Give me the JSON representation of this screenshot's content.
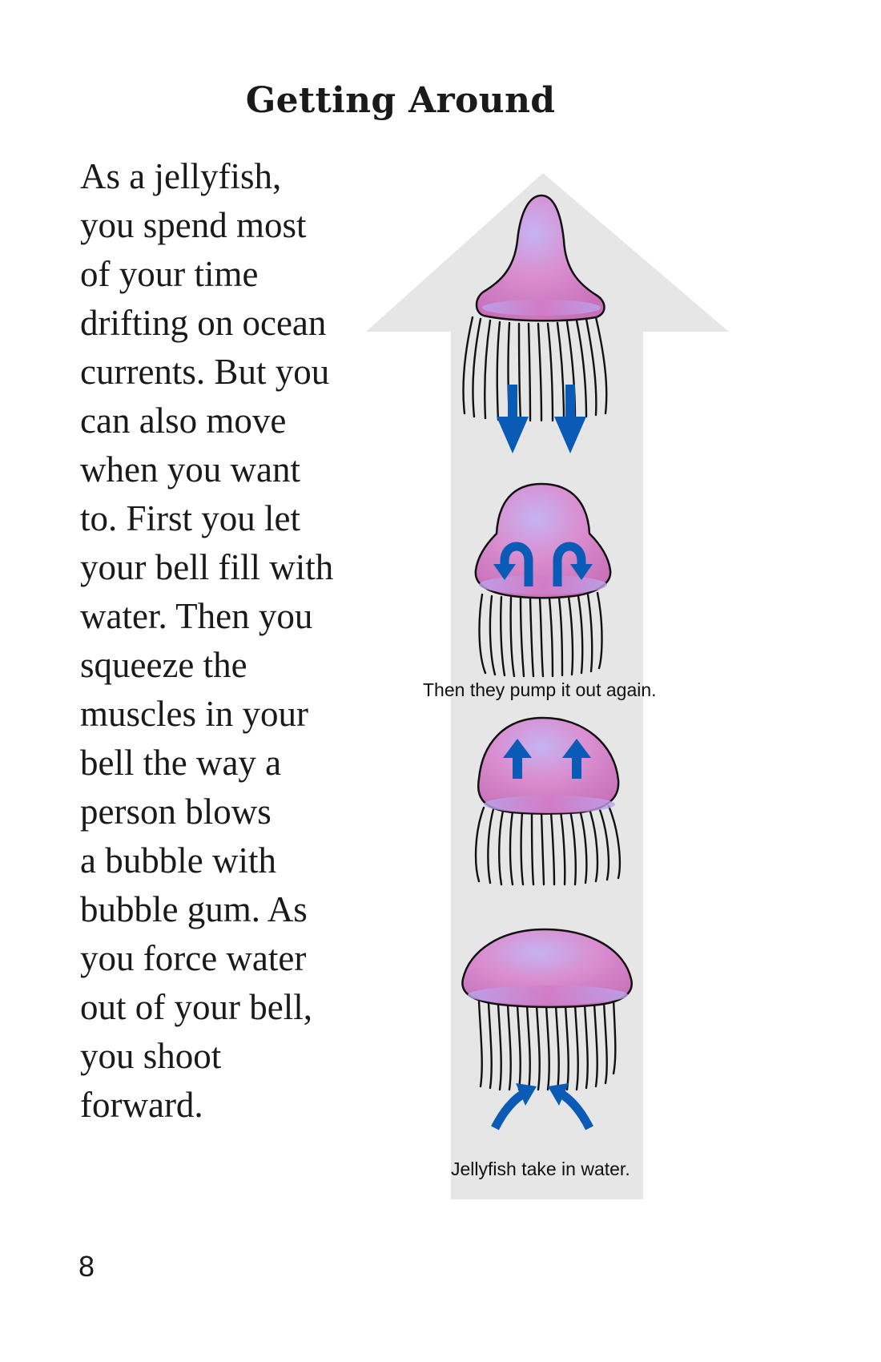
{
  "page": {
    "title": "Getting Around",
    "body_lines": [
      "As a jellyfish,",
      "you spend most",
      "of your time",
      "drifting on ocean",
      "currents. But you",
      "can also move",
      "when you want",
      "to. First you let",
      "your bell fill with",
      "water. Then you",
      "squeeze the",
      "muscles in your",
      "bell the way a",
      "person blows",
      "a bubble with",
      "bubble gum. As",
      "you force water",
      "out of your bell,",
      "you shoot",
      "forward."
    ],
    "page_number": "8"
  },
  "illustration": {
    "caption_top": "Then they pump it out again.",
    "caption_bottom": "Jellyfish take in water.",
    "colors": {
      "arrow_background": "#e6e6e6",
      "bell_fill": "#d88fcf",
      "bell_highlight": "#b9a7ee",
      "water_arrow": "#0a5bb5",
      "outline": "#111111"
    }
  }
}
